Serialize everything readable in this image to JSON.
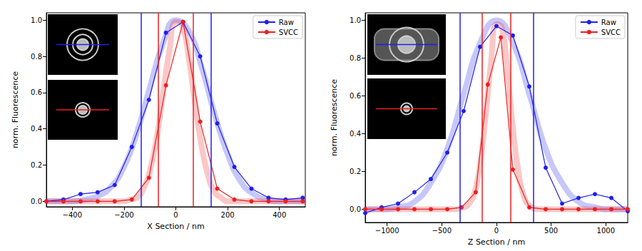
{
  "chart_data": [
    {
      "type": "line",
      "x_label": "X Section / nm",
      "y_label": "norm. Fluorescence",
      "xlim": [
        -500,
        500
      ],
      "ylim": [
        -0.03,
        1.04
      ],
      "xticks": [
        {
          "value": -400,
          "label": "−400"
        },
        {
          "value": -200,
          "label": "−200"
        },
        0,
        200,
        400
      ],
      "yticks": [
        {
          "value": 0,
          "label": "0.0"
        },
        0.2,
        0.4,
        0.6,
        0.8,
        {
          "value": 1,
          "label": "1.0"
        }
      ],
      "grid": false,
      "legend": "upper right",
      "series": [
        {
          "name": "Raw",
          "color": "#1f1fee",
          "marker": "circle",
          "line_style": "solid",
          "x": [
            -500,
            -434,
            -368,
            -302,
            -236,
            -170,
            -104,
            -38,
            28,
            94,
            160,
            226,
            292,
            358,
            424,
            490
          ],
          "values": [
            0.0,
            0.01,
            0.04,
            0.05,
            0.09,
            0.3,
            0.56,
            0.93,
            0.99,
            0.8,
            0.43,
            0.19,
            0.07,
            0.02,
            0.01,
            0.02
          ],
          "fit": {
            "x": [
              -500,
              -450,
              -400,
              -350,
              -300,
              -250,
              -200,
              -150,
              -100,
              -50,
              0,
              50,
              100,
              150,
              200,
              250,
              300,
              350,
              400,
              450,
              500
            ],
            "values": [
              0.0,
              0.0,
              0.0,
              0.01,
              0.03,
              0.08,
              0.19,
              0.38,
              0.63,
              0.87,
              1.0,
              0.94,
              0.74,
              0.48,
              0.26,
              0.11,
              0.04,
              0.01,
              0.0,
              0.0,
              0.0
            ]
          },
          "bounds": [
            -135,
            135
          ]
        },
        {
          "name": "SVCC",
          "color": "#ee1f1f",
          "marker": "circle",
          "line_style": "solid",
          "x": [
            -500,
            -434,
            -368,
            -302,
            -236,
            -170,
            -104,
            -38,
            28,
            94,
            160,
            226,
            292,
            358,
            424,
            490
          ],
          "values": [
            0.0,
            0.0,
            0.0,
            0.0,
            0.0,
            0.01,
            0.13,
            0.64,
            0.99,
            0.44,
            0.07,
            0.01,
            0.0,
            0.0,
            0.0,
            0.0
          ],
          "fit": {
            "x": [
              -500,
              -250,
              -200,
              -175,
              -150,
              -125,
              -100,
              -75,
              -50,
              -25,
              0,
              25,
              50,
              75,
              100,
              125,
              150,
              175,
              200,
              250,
              500
            ],
            "values": [
              0.0,
              0.0,
              0.0,
              0.01,
              0.02,
              0.07,
              0.17,
              0.34,
              0.59,
              0.83,
              0.99,
              0.97,
              0.79,
              0.53,
              0.3,
              0.14,
              0.05,
              0.02,
              0.0,
              0.0,
              0.0
            ]
          },
          "bounds": [
            -68,
            68
          ]
        }
      ]
    },
    {
      "type": "line",
      "x_label": "Z Section / nm",
      "y_label": "norm. Fluorescence",
      "xlim": [
        -1200,
        1200
      ],
      "ylim": [
        -0.07,
        1.04
      ],
      "xticks": [
        {
          "value": -1000,
          "label": "−1000"
        },
        {
          "value": -500,
          "label": "−500"
        },
        0,
        500,
        1000
      ],
      "yticks": [
        {
          "value": 0,
          "label": "0.0"
        },
        0.2,
        0.4,
        0.6,
        0.8,
        {
          "value": 1,
          "label": "1.0"
        }
      ],
      "grid": false,
      "legend": "upper right",
      "series": [
        {
          "name": "Raw",
          "color": "#1f1fee",
          "marker": "circle",
          "line_style": "solid",
          "x": [
            -1200,
            -1050,
            -900,
            -750,
            -600,
            -450,
            -300,
            -150,
            0,
            150,
            300,
            450,
            600,
            750,
            900,
            1050,
            1200
          ],
          "values": [
            -0.02,
            0.01,
            0.03,
            0.09,
            0.16,
            0.3,
            0.52,
            0.86,
            0.97,
            0.92,
            0.65,
            0.22,
            0.03,
            0.06,
            0.08,
            0.06,
            -0.01
          ],
          "fit": {
            "x": [
              -1200,
              -1050,
              -900,
              -750,
              -600,
              -450,
              -300,
              -150,
              0,
              150,
              300,
              450,
              600,
              750,
              900,
              1050,
              1200
            ],
            "values": [
              0.0,
              0.0,
              0.01,
              0.04,
              0.14,
              0.32,
              0.61,
              0.88,
              1.0,
              0.88,
              0.61,
              0.32,
              0.14,
              0.04,
              0.01,
              0.0,
              0.0
            ]
          },
          "bounds": [
            -335,
            335
          ]
        },
        {
          "name": "SVCC",
          "color": "#ee1f1f",
          "marker": "circle",
          "line_style": "solid",
          "x": [
            -1200,
            -1050,
            -900,
            -750,
            -600,
            -450,
            -320,
            -190,
            -80,
            40,
            150,
            300,
            450,
            600,
            750,
            900,
            1050,
            1200
          ],
          "values": [
            0.0,
            0.0,
            0.0,
            0.0,
            0.0,
            0.0,
            0.01,
            0.09,
            0.66,
            0.91,
            0.21,
            0.01,
            0.0,
            0.0,
            0.0,
            0.0,
            0.0,
            0.0
          ],
          "fit": {
            "x": [
              -1200,
              -400,
              -300,
              -250,
              -200,
              -150,
              -100,
              -50,
              0,
              50,
              100,
              150,
              200,
              250,
              300,
              400,
              1200
            ],
            "values": [
              0.0,
              0.0,
              0.01,
              0.03,
              0.09,
              0.24,
              0.49,
              0.78,
              0.98,
              0.96,
              0.73,
              0.43,
              0.2,
              0.07,
              0.02,
              0.0,
              0.0
            ]
          },
          "bounds": [
            -130,
            130
          ]
        }
      ]
    }
  ]
}
